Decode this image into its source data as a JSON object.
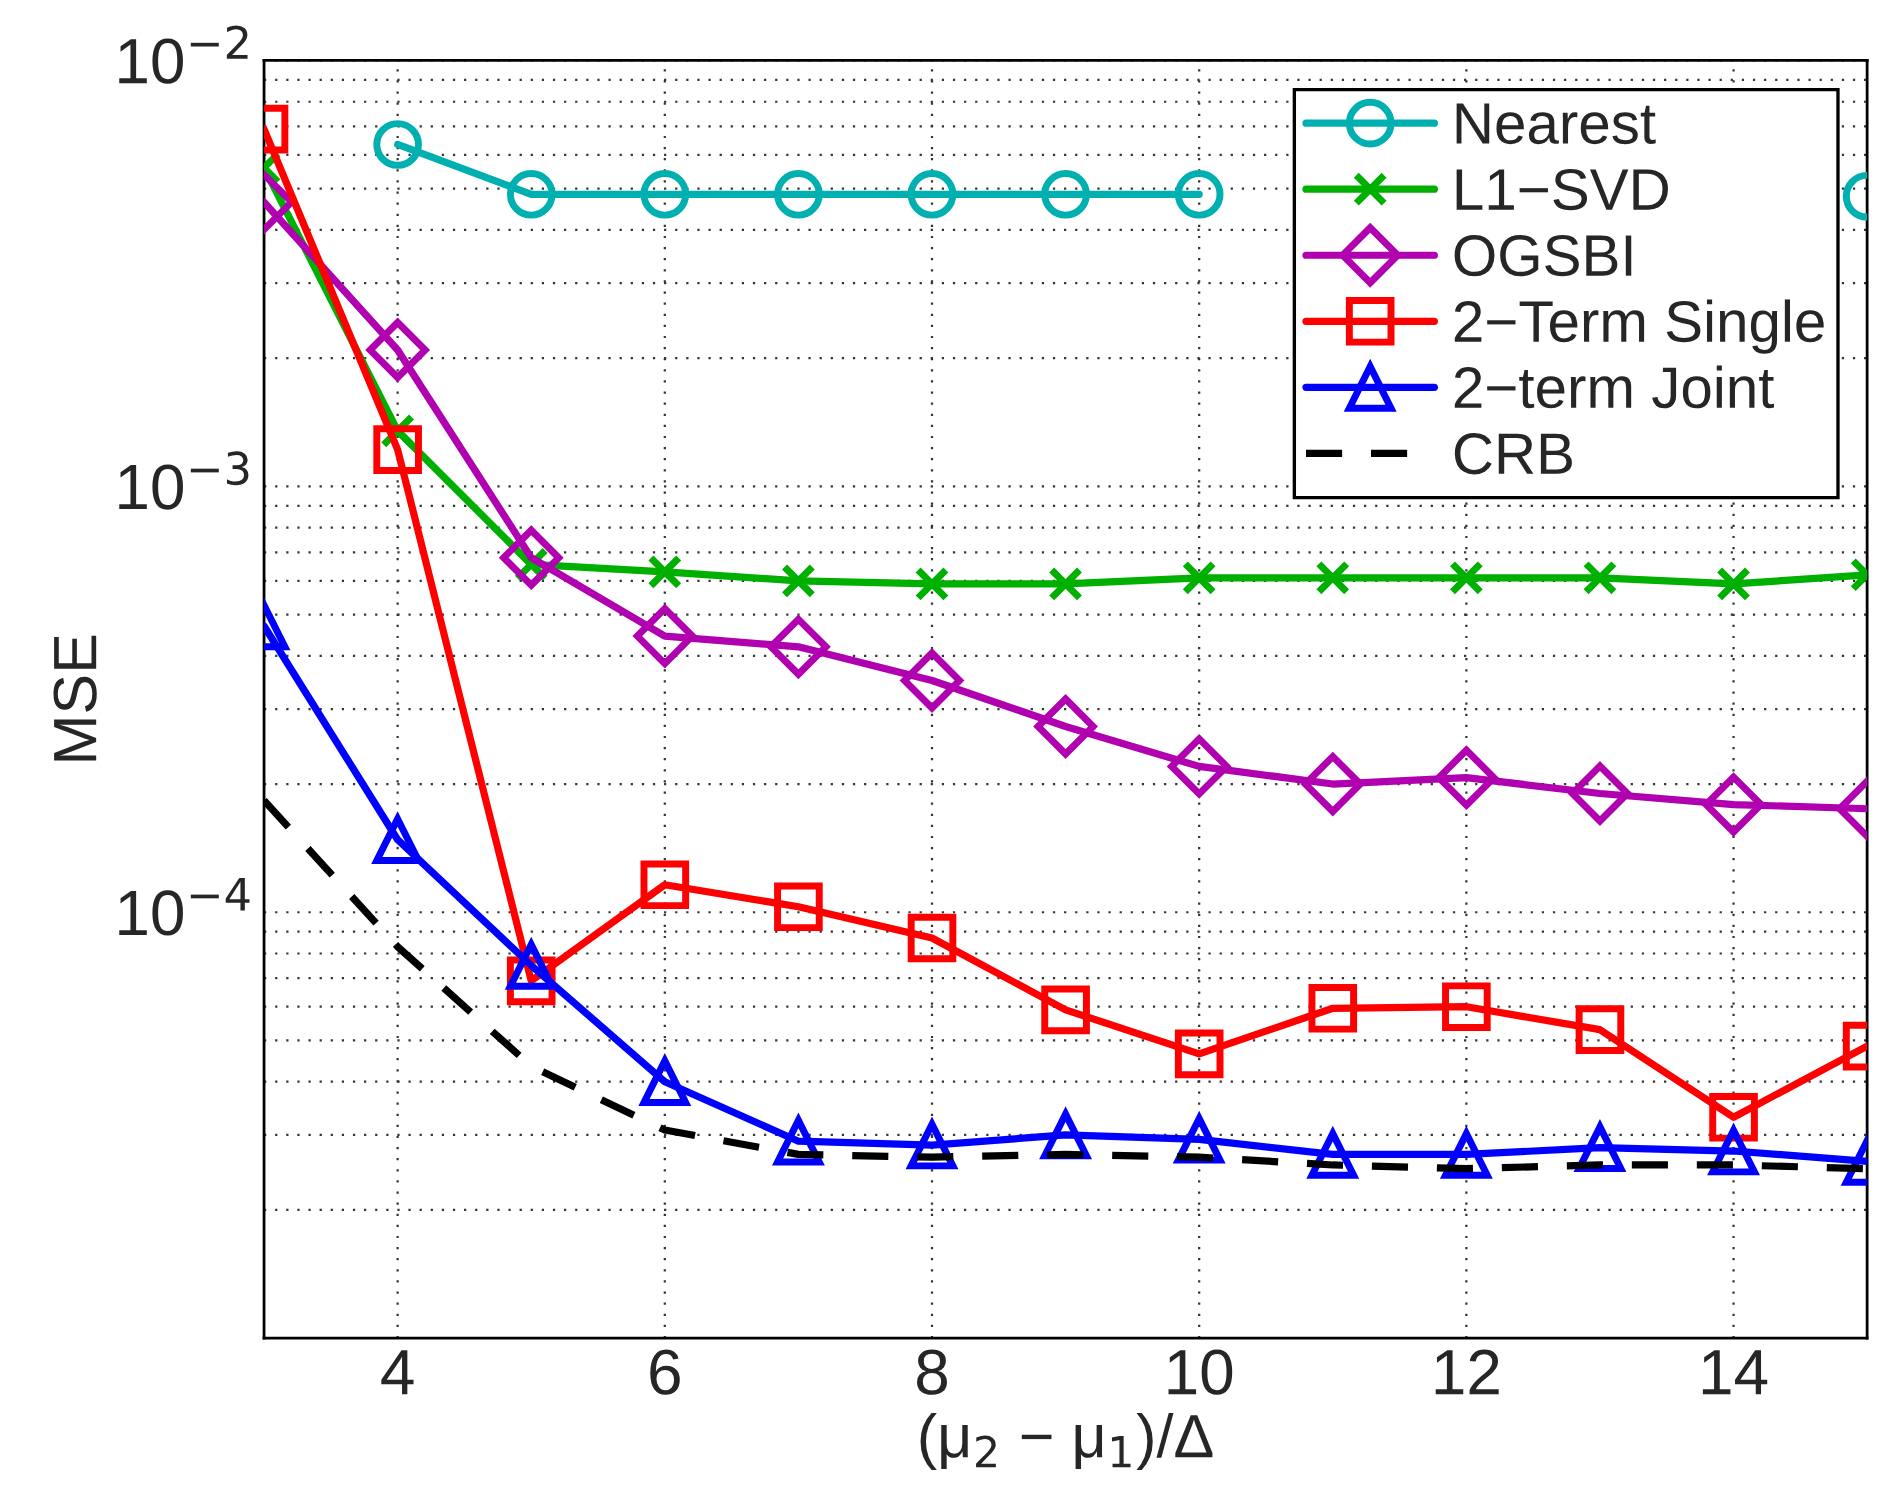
{
  "chart_data": {
    "type": "line",
    "xlabel": "(μ$_{2}$ − μ$_{1}$)/Δ",
    "ylabel": "MSE",
    "x": [
      3,
      4,
      5,
      6,
      7,
      8,
      9,
      10,
      11,
      12,
      13,
      14,
      15
    ],
    "xlim": [
      3,
      15
    ],
    "xticks": [
      4,
      6,
      8,
      10,
      12,
      14
    ],
    "ylim": [
      1e-05,
      0.01
    ],
    "yticks": [
      {
        "value": 1e-05,
        "label": null
      },
      {
        "value": 0.0001,
        "label": "10$^{−4}$"
      },
      {
        "value": 0.001,
        "label": "10$^{−3}$"
      },
      {
        "value": 0.01,
        "label": "10$^{−2}$"
      }
    ],
    "log": "y",
    "grid": true,
    "legend": "top right",
    "series": [
      {
        "name": "Nearest",
        "color": "#00b0b0",
        "marker": "circle",
        "line_style": "solid",
        "values": [
          null,
          0.00635,
          0.00485,
          0.00485,
          0.00485,
          0.00485,
          0.00485,
          0.00485,
          null,
          null,
          null,
          null,
          0.0048
        ]
      },
      {
        "name": "L1−SVD",
        "color": "#00b000",
        "marker": "cross",
        "line_style": "solid",
        "values": [
          0.0056,
          0.00135,
          0.000656,
          0.00063,
          0.0006,
          0.00059,
          0.00059,
          0.00061,
          0.00061,
          0.00061,
          0.00061,
          0.00059,
          0.00062
        ]
      },
      {
        "name": "OGSBI",
        "color": "#b000b0",
        "marker": "diamond",
        "line_style": "solid",
        "values": [
          0.00465,
          0.00209,
          0.00068,
          0.000445,
          0.00042,
          0.00035,
          0.000273,
          0.00022,
          0.0002,
          0.000207,
          0.00019,
          0.000179,
          0.000175
        ]
      },
      {
        "name": "2−Term Single",
        "color": "#ff0000",
        "marker": "square",
        "line_style": "solid",
        "values": [
          0.0069,
          0.00122,
          6.9e-05,
          0.000116,
          0.000103,
          8.7e-05,
          5.9e-05,
          4.65e-05,
          5.95e-05,
          6e-05,
          5.3e-05,
          3.3e-05,
          4.85e-05
        ]
      },
      {
        "name": "2−term Joint",
        "color": "#0000ff",
        "marker": "triangle",
        "line_style": "solid",
        "values": [
          0.00047,
          0.000148,
          7.5e-05,
          4e-05,
          2.9e-05,
          2.84e-05,
          3e-05,
          2.93e-05,
          2.7e-05,
          2.7e-05,
          2.8e-05,
          2.75e-05,
          2.6e-05
        ]
      },
      {
        "name": "CRB",
        "color": "#000000",
        "marker": "none",
        "line_style": "dashed",
        "values": [
          0.000183,
          8.3e-05,
          4.35e-05,
          3.08e-05,
          2.7e-05,
          2.66e-05,
          2.7e-05,
          2.66e-05,
          2.55e-05,
          2.5e-05,
          2.55e-05,
          2.55e-05,
          2.5e-05
        ]
      }
    ]
  }
}
